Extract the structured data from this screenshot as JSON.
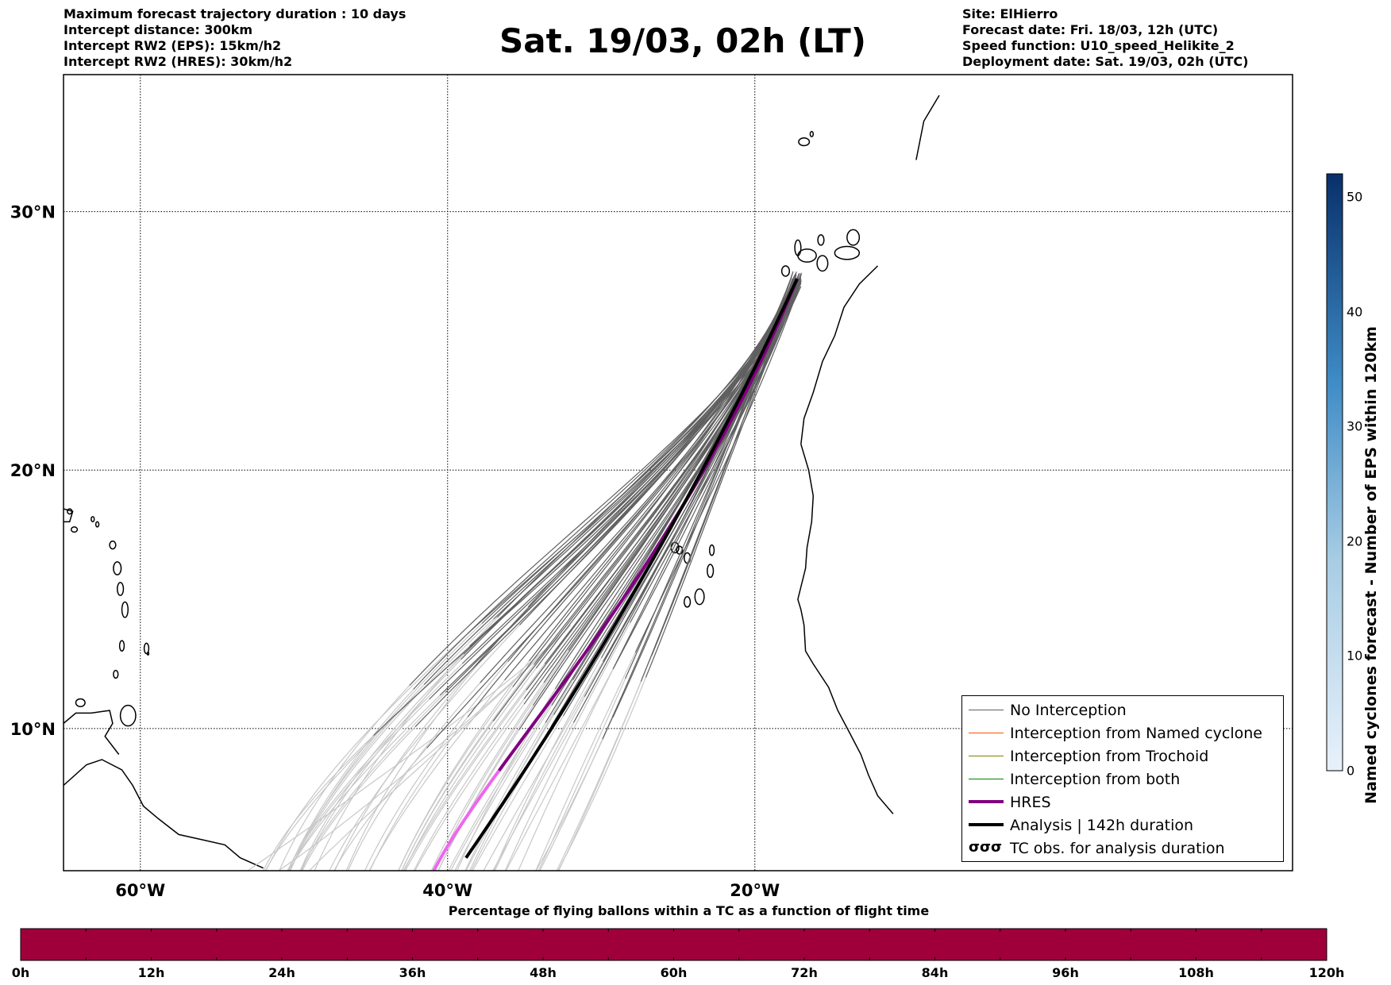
{
  "header_left": [
    "Maximum forecast trajectory duration : 10 days",
    "Intercept distance: 300km",
    "Intercept RW2 (EPS):  15km/h2",
    "Intercept RW2 (HRES): 30km/h2"
  ],
  "header_right": [
    "Site: ElHierro",
    "Forecast date: Fri. 18/03, 12h (UTC)",
    "Speed function: U10_speed_Helikite_2",
    "Deployment date: Sat. 19/03, 02h (UTC)"
  ],
  "title": "Sat. 19/03, 02h (LT)",
  "map": {
    "lon_range": [
      -65,
      15
    ],
    "lat_range": [
      4.5,
      35.3
    ],
    "lat_ticks": [
      {
        "value": 30,
        "label": "30°N"
      },
      {
        "value": 20,
        "label": "20°N"
      },
      {
        "value": 10,
        "label": "10°N"
      }
    ],
    "lon_ticks": [
      {
        "value": -60,
        "label": "60°W"
      },
      {
        "value": -40,
        "label": "40°W"
      },
      {
        "value": -20,
        "label": "20°W"
      }
    ],
    "colors": {
      "no_interception": "#606060",
      "no_interception_faded": "#c8c8c8",
      "named_cyclone": "#ff5000",
      "trochoid": "#808000",
      "both": "#008000",
      "hres": "#800080",
      "hres_light": "#ee66ee",
      "analysis": "#000000"
    }
  },
  "legend": [
    {
      "label": "No Interception",
      "style": "gray"
    },
    {
      "label": "Interception from Named cyclone",
      "style": "orange"
    },
    {
      "label": "Interception from Trochoid",
      "style": "olive"
    },
    {
      "label": "Interception from both",
      "style": "green"
    },
    {
      "label": "HRES",
      "style": "purple"
    },
    {
      "label": "Analysis | 142h duration",
      "style": "black"
    },
    {
      "label": "TC obs. for analysis duration",
      "style": "symbol",
      "symbol": "σσσ"
    }
  ],
  "pct_bar": {
    "title": "Percentage of flying ballons within a TC as a function of flight time",
    "color": "#a0003a",
    "ticks": [
      "0h",
      "12h",
      "24h",
      "36h",
      "48h",
      "60h",
      "72h",
      "84h",
      "96h",
      "108h",
      "120h"
    ]
  },
  "colorbar": {
    "title": "Named cyclones forecast - Number of EPS within 120km",
    "ticks": [
      "0",
      "10",
      "20",
      "30",
      "40",
      "50"
    ],
    "max": 52
  }
}
